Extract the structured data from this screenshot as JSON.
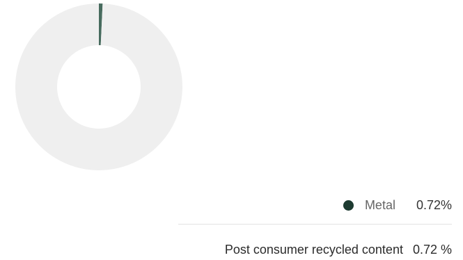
{
  "chart_data": {
    "type": "pie",
    "variant": "donut",
    "slices": [
      {
        "name": "Metal",
        "value": 0.72,
        "color": "#476b5e"
      },
      {
        "name": "",
        "value": 99.28,
        "color": "#efefef"
      }
    ]
  },
  "legend": {
    "items": [
      {
        "label": "Metal",
        "value": "0.72%",
        "dot_color": "#1d3b31"
      }
    ]
  },
  "summary": {
    "label": "Post consumer recycled content",
    "value": "0.72 %"
  }
}
